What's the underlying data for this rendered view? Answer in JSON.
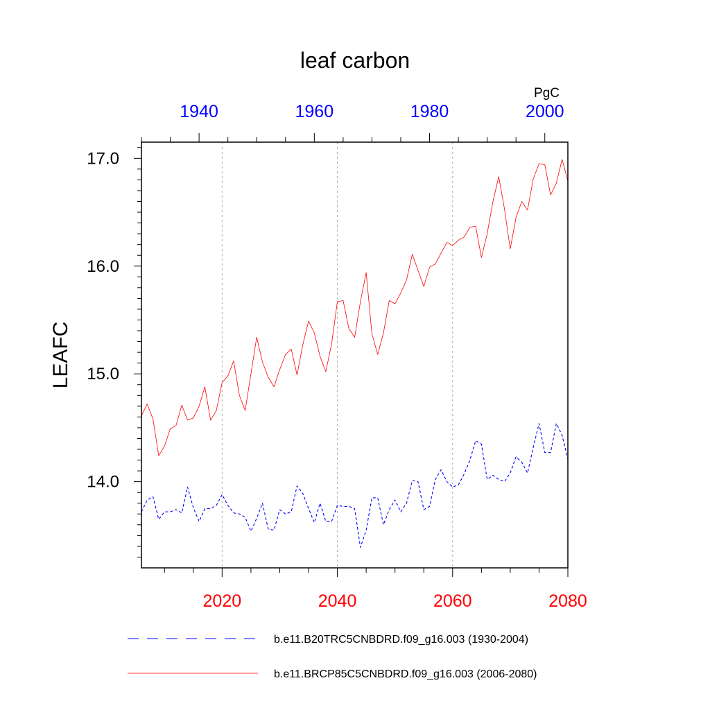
{
  "chart_data": {
    "type": "line",
    "title": "leaf carbon",
    "units": "PgC",
    "ylabel": "LEAFC",
    "ylim": [
      13.2,
      17.15
    ],
    "yticks": [
      14.0,
      15.0,
      16.0,
      17.0
    ],
    "ytick_labels": [
      "14.0",
      "15.0",
      "16.0",
      "17.0"
    ],
    "x_bottom": {
      "range": [
        2006,
        2080
      ],
      "ticks": [
        2020,
        2040,
        2060,
        2080
      ],
      "tick_labels": [
        "2020",
        "2040",
        "2060",
        "2080"
      ],
      "color": "#ff0000"
    },
    "x_top": {
      "range": [
        1930,
        2004
      ],
      "ticks": [
        1940,
        1960,
        1980,
        2000
      ],
      "tick_labels": [
        "1940",
        "1960",
        "1980",
        "2000"
      ],
      "color": "#0000ff"
    },
    "gridlines_x_bottom": [
      2020,
      2040,
      2060
    ],
    "series": [
      {
        "name": "b.e11.B20TRC5CNBDRD.f09_g16.003 (1930-2004)",
        "axis": "top",
        "color": "#0000ff",
        "dash": "dashed",
        "x_start": 1930,
        "values": [
          13.72,
          13.83,
          13.86,
          13.65,
          13.72,
          13.72,
          13.74,
          13.71,
          13.95,
          13.76,
          13.63,
          13.75,
          13.75,
          13.78,
          13.88,
          13.78,
          13.71,
          13.7,
          13.67,
          13.54,
          13.66,
          13.8,
          13.56,
          13.55,
          13.74,
          13.7,
          13.72,
          13.96,
          13.89,
          13.75,
          13.62,
          13.8,
          13.63,
          13.63,
          13.78,
          13.77,
          13.77,
          13.75,
          13.39,
          13.55,
          13.85,
          13.85,
          13.6,
          13.74,
          13.83,
          13.72,
          13.8,
          14.01,
          14.0,
          13.74,
          13.77,
          14.02,
          14.11,
          14.0,
          13.95,
          13.97,
          14.07,
          14.2,
          14.38,
          14.35,
          14.02,
          14.06,
          14.02,
          14.0,
          14.08,
          14.23,
          14.18,
          14.08,
          14.32,
          14.54,
          14.27,
          14.27,
          14.54,
          14.43,
          14.21
        ]
      },
      {
        "name": "b.e11.BRCP85C5CNBDRD.f09_g16.003 (2006-2080)",
        "axis": "bottom",
        "color": "#ff0000",
        "dash": "solid",
        "x_start": 2006,
        "values": [
          14.61,
          14.72,
          14.58,
          14.24,
          14.33,
          14.49,
          14.52,
          14.71,
          14.57,
          14.59,
          14.7,
          14.88,
          14.57,
          14.66,
          14.92,
          14.98,
          15.12,
          14.8,
          14.66,
          15.0,
          15.34,
          15.11,
          14.97,
          14.88,
          15.04,
          15.18,
          15.23,
          14.99,
          15.27,
          15.49,
          15.38,
          15.16,
          15.02,
          15.28,
          15.67,
          15.68,
          15.42,
          15.34,
          15.67,
          15.94,
          15.37,
          15.18,
          15.38,
          15.68,
          15.65,
          15.75,
          15.87,
          16.11,
          15.96,
          15.81,
          15.99,
          16.02,
          16.12,
          16.22,
          16.19,
          16.24,
          16.27,
          16.36,
          16.37,
          16.08,
          16.3,
          16.6,
          16.83,
          16.53,
          16.16,
          16.45,
          16.6,
          16.52,
          16.81,
          16.95,
          16.94,
          16.66,
          16.77,
          16.99,
          16.79
        ]
      }
    ],
    "legend_position": "bottom"
  }
}
